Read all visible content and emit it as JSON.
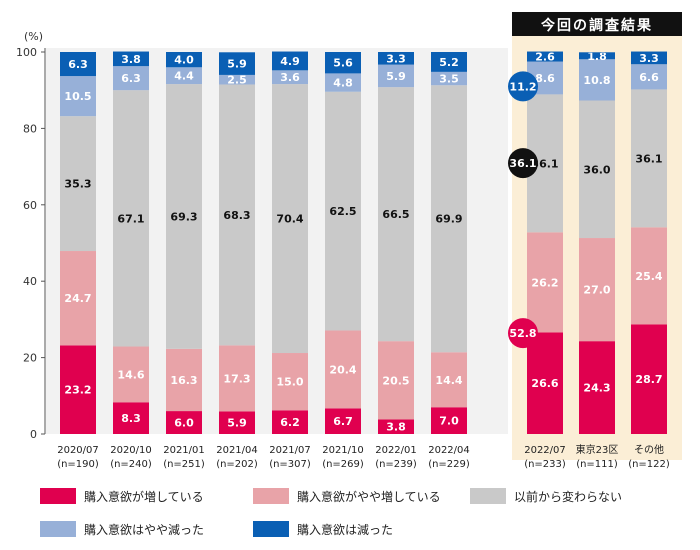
{
  "chart_data": {
    "type": "bar",
    "stacked": true,
    "yunit": "(%)",
    "ylim": [
      0,
      100
    ],
    "yticks": [
      0,
      20,
      40,
      60,
      80,
      100
    ],
    "grid": false,
    "legend_position": "bottom",
    "highlight_title": "今回の調査結果",
    "categories": [
      {
        "label": "2020/07",
        "n": "(n=190)"
      },
      {
        "label": "2020/10",
        "n": "(n=240)"
      },
      {
        "label": "2021/01",
        "n": "(n=251)"
      },
      {
        "label": "2021/04",
        "n": "(n=202)"
      },
      {
        "label": "2021/07",
        "n": "(n=307)"
      },
      {
        "label": "2021/10",
        "n": "(n=269)"
      },
      {
        "label": "2022/01",
        "n": "(n=239)"
      },
      {
        "label": "2022/04",
        "n": "(n=229)"
      },
      {
        "label": "2022/07",
        "n": "(n=233)"
      },
      {
        "label": "東京23区",
        "n": "(n=111)"
      },
      {
        "label": "その他",
        "n": "(n=122)"
      }
    ],
    "highlight_categories": [
      "2022/07",
      "東京23区",
      "その他"
    ],
    "series": [
      {
        "name": "購入意欲が増している",
        "color": "#e0004f",
        "label_color": "#ffffff",
        "values": [
          23.2,
          8.3,
          6.0,
          5.9,
          6.2,
          6.7,
          3.8,
          7.0,
          26.6,
          24.3,
          28.7
        ]
      },
      {
        "name": "購入意欲がやや増している",
        "color": "#e8a3a8",
        "label_color": "#ffffff",
        "values": [
          24.7,
          14.6,
          16.3,
          17.3,
          15.0,
          20.4,
          20.5,
          14.4,
          26.2,
          27.0,
          25.4
        ]
      },
      {
        "name": "以前から変わらない",
        "color": "#c9c9c9",
        "label_color": "#111111",
        "values": [
          35.3,
          67.1,
          69.3,
          68.3,
          70.4,
          62.5,
          66.5,
          69.9,
          36.1,
          36.0,
          36.1
        ]
      },
      {
        "name": "購入意欲はやや減った",
        "color": "#97b0d8",
        "label_color": "#ffffff",
        "values": [
          10.5,
          6.3,
          4.4,
          2.5,
          3.6,
          4.8,
          5.9,
          3.5,
          8.6,
          10.8,
          6.6
        ]
      },
      {
        "name": "購入意欲は減った",
        "color": "#0a5fb4",
        "label_color": "#ffffff",
        "values": [
          6.3,
          3.8,
          4.0,
          5.9,
          4.9,
          5.6,
          3.3,
          5.2,
          2.6,
          1.8,
          3.3
        ]
      }
    ],
    "callouts": [
      {
        "text": "11.2",
        "color": "#0a5fb4",
        "category": "2022/07",
        "level": 91.0
      },
      {
        "text": "36.1",
        "color": "#111111",
        "category": "2022/07",
        "level": 70.9
      },
      {
        "text": "52.8",
        "color": "#e0004f",
        "category": "2022/07",
        "level": 26.4
      }
    ]
  }
}
